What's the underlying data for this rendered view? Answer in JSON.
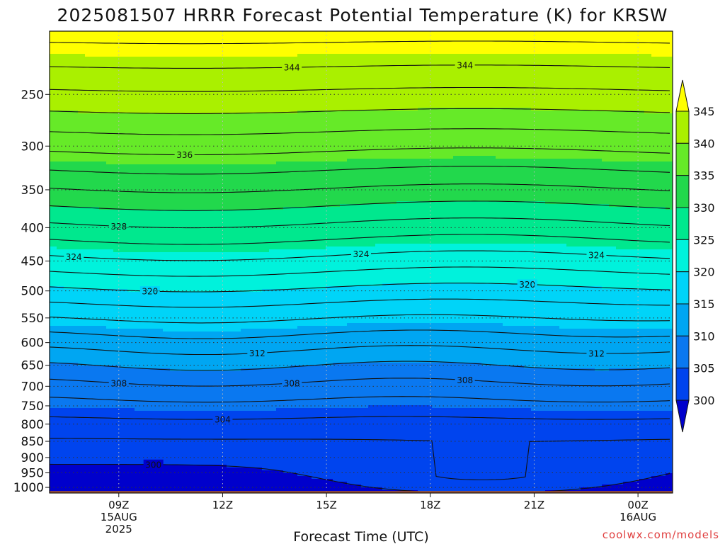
{
  "chart_data": {
    "type": "heatmap",
    "title": "2025081507 HRRR Forecast Potential Temperature (K) for KRSW",
    "xlabel": "Forecast Time (UTC)",
    "credit": "coolwx.com/models",
    "y_scale": "log-pressure (hPa), inverted",
    "ylim": [
      1020,
      200
    ],
    "y_ticks": [
      250,
      300,
      350,
      400,
      450,
      500,
      550,
      600,
      650,
      700,
      750,
      800,
      850,
      900,
      950,
      1000
    ],
    "x_ticks": [
      {
        "label": "09Z",
        "sub1": "15AUG",
        "sub2": "2025",
        "hour": 9
      },
      {
        "label": "12Z",
        "sub1": "",
        "sub2": "",
        "hour": 12
      },
      {
        "label": "15Z",
        "sub1": "",
        "sub2": "",
        "hour": 15
      },
      {
        "label": "18Z",
        "sub1": "",
        "sub2": "",
        "hour": 18
      },
      {
        "label": "21Z",
        "sub1": "",
        "sub2": "",
        "hour": 21
      },
      {
        "label": "00Z",
        "sub1": "16AUG",
        "sub2": "",
        "hour": 24
      }
    ],
    "x_range_hours": [
      7,
      25
    ],
    "contour_interval": 2,
    "colorbar": {
      "levels": [
        300,
        305,
        310,
        315,
        320,
        325,
        330,
        335,
        340,
        345
      ],
      "colors": [
        "#0000cc",
        "#0044ee",
        "#0a78f0",
        "#00a6f2",
        "#00d4f8",
        "#00f2dc",
        "#00e88e",
        "#22d84c",
        "#66ea28",
        "#aaf000",
        "#ffff00"
      ]
    },
    "ground_color": "#a0522d",
    "contours": [
      {
        "level": 300,
        "label": "300",
        "label_time": 10.0
      },
      {
        "level": 304,
        "label": "304",
        "label_time": 12.0
      },
      {
        "level": 308,
        "label": "308",
        "label_time": 9.0
      },
      {
        "level": 308,
        "label": "308",
        "label_time": 14.0
      },
      {
        "level": 308,
        "label": "308",
        "label_time": 19.0
      },
      {
        "level": 312,
        "label": "312",
        "label_time": 13.0
      },
      {
        "level": 312,
        "label": "312",
        "label_time": 22.8
      },
      {
        "level": 320,
        "label": "320",
        "label_time": 9.9
      },
      {
        "level": 320,
        "label": "320",
        "label_time": 20.8
      },
      {
        "level": 324,
        "label": "324",
        "label_time": 7.7
      },
      {
        "level": 324,
        "label": "324",
        "label_time": 16.0
      },
      {
        "level": 324,
        "label": "324",
        "label_time": 22.8
      },
      {
        "level": 328,
        "label": "328",
        "label_time": 9.0
      },
      {
        "level": 336,
        "label": "336",
        "label_time": 10.9
      },
      {
        "level": 344,
        "label": "344",
        "label_time": 14.0
      },
      {
        "level": 344,
        "label": "344",
        "label_time": 19.0
      }
    ]
  }
}
